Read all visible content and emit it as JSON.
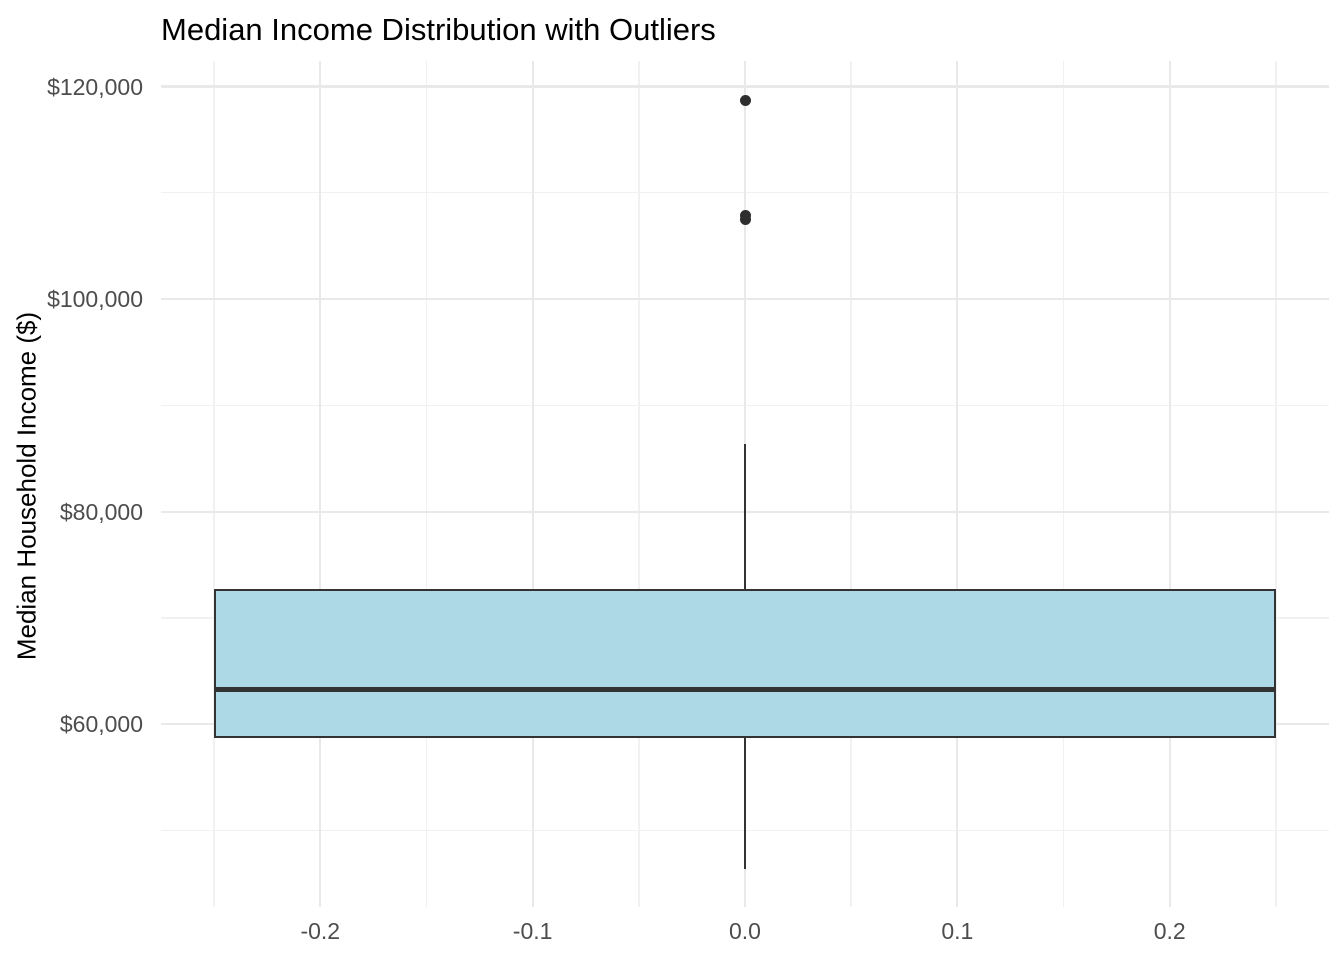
{
  "chart_data": {
    "type": "boxplot",
    "title": "Median Income Distribution with Outliers",
    "xlabel": "",
    "ylabel": "Median Household Income ($)",
    "xlim": [
      -0.275,
      0.275
    ],
    "ylim": [
      42800,
      122400
    ],
    "x_ticks": [
      -0.2,
      -0.1,
      0.0,
      0.1,
      0.2
    ],
    "x_tick_labels": [
      "-0.2",
      "-0.1",
      "0.0",
      "0.1",
      "0.2"
    ],
    "x_minor_ticks": [
      -0.25,
      -0.15,
      -0.05,
      0.05,
      0.15,
      0.25
    ],
    "y_ticks": [
      60000,
      80000,
      100000,
      120000
    ],
    "y_tick_labels": [
      "$60,000",
      "$80,000",
      "$100,000",
      "$120,000"
    ],
    "y_minor_ticks": [
      50000,
      70000,
      90000,
      110000
    ],
    "grid": true,
    "legend": false,
    "series": [
      {
        "name": "median-income-box",
        "x": 0,
        "box_width": 0.5,
        "lower_whisker": 46400,
        "q1": 58700,
        "median": 63300,
        "q3": 72700,
        "upper_whisker": 86400,
        "outliers": [
          118700,
          107900,
          107500
        ]
      }
    ],
    "colors": {
      "box_fill": "#ADD8E6",
      "box_border": "#333333",
      "median_line": "#333333",
      "whisker": "#333333",
      "outlier": "#2e2e2e",
      "grid_major": "#e9e9e9",
      "grid_minor": "#f1f1f1",
      "axis_text": "#4d4d4d",
      "title_text": "#000000",
      "background": "#ffffff"
    }
  }
}
